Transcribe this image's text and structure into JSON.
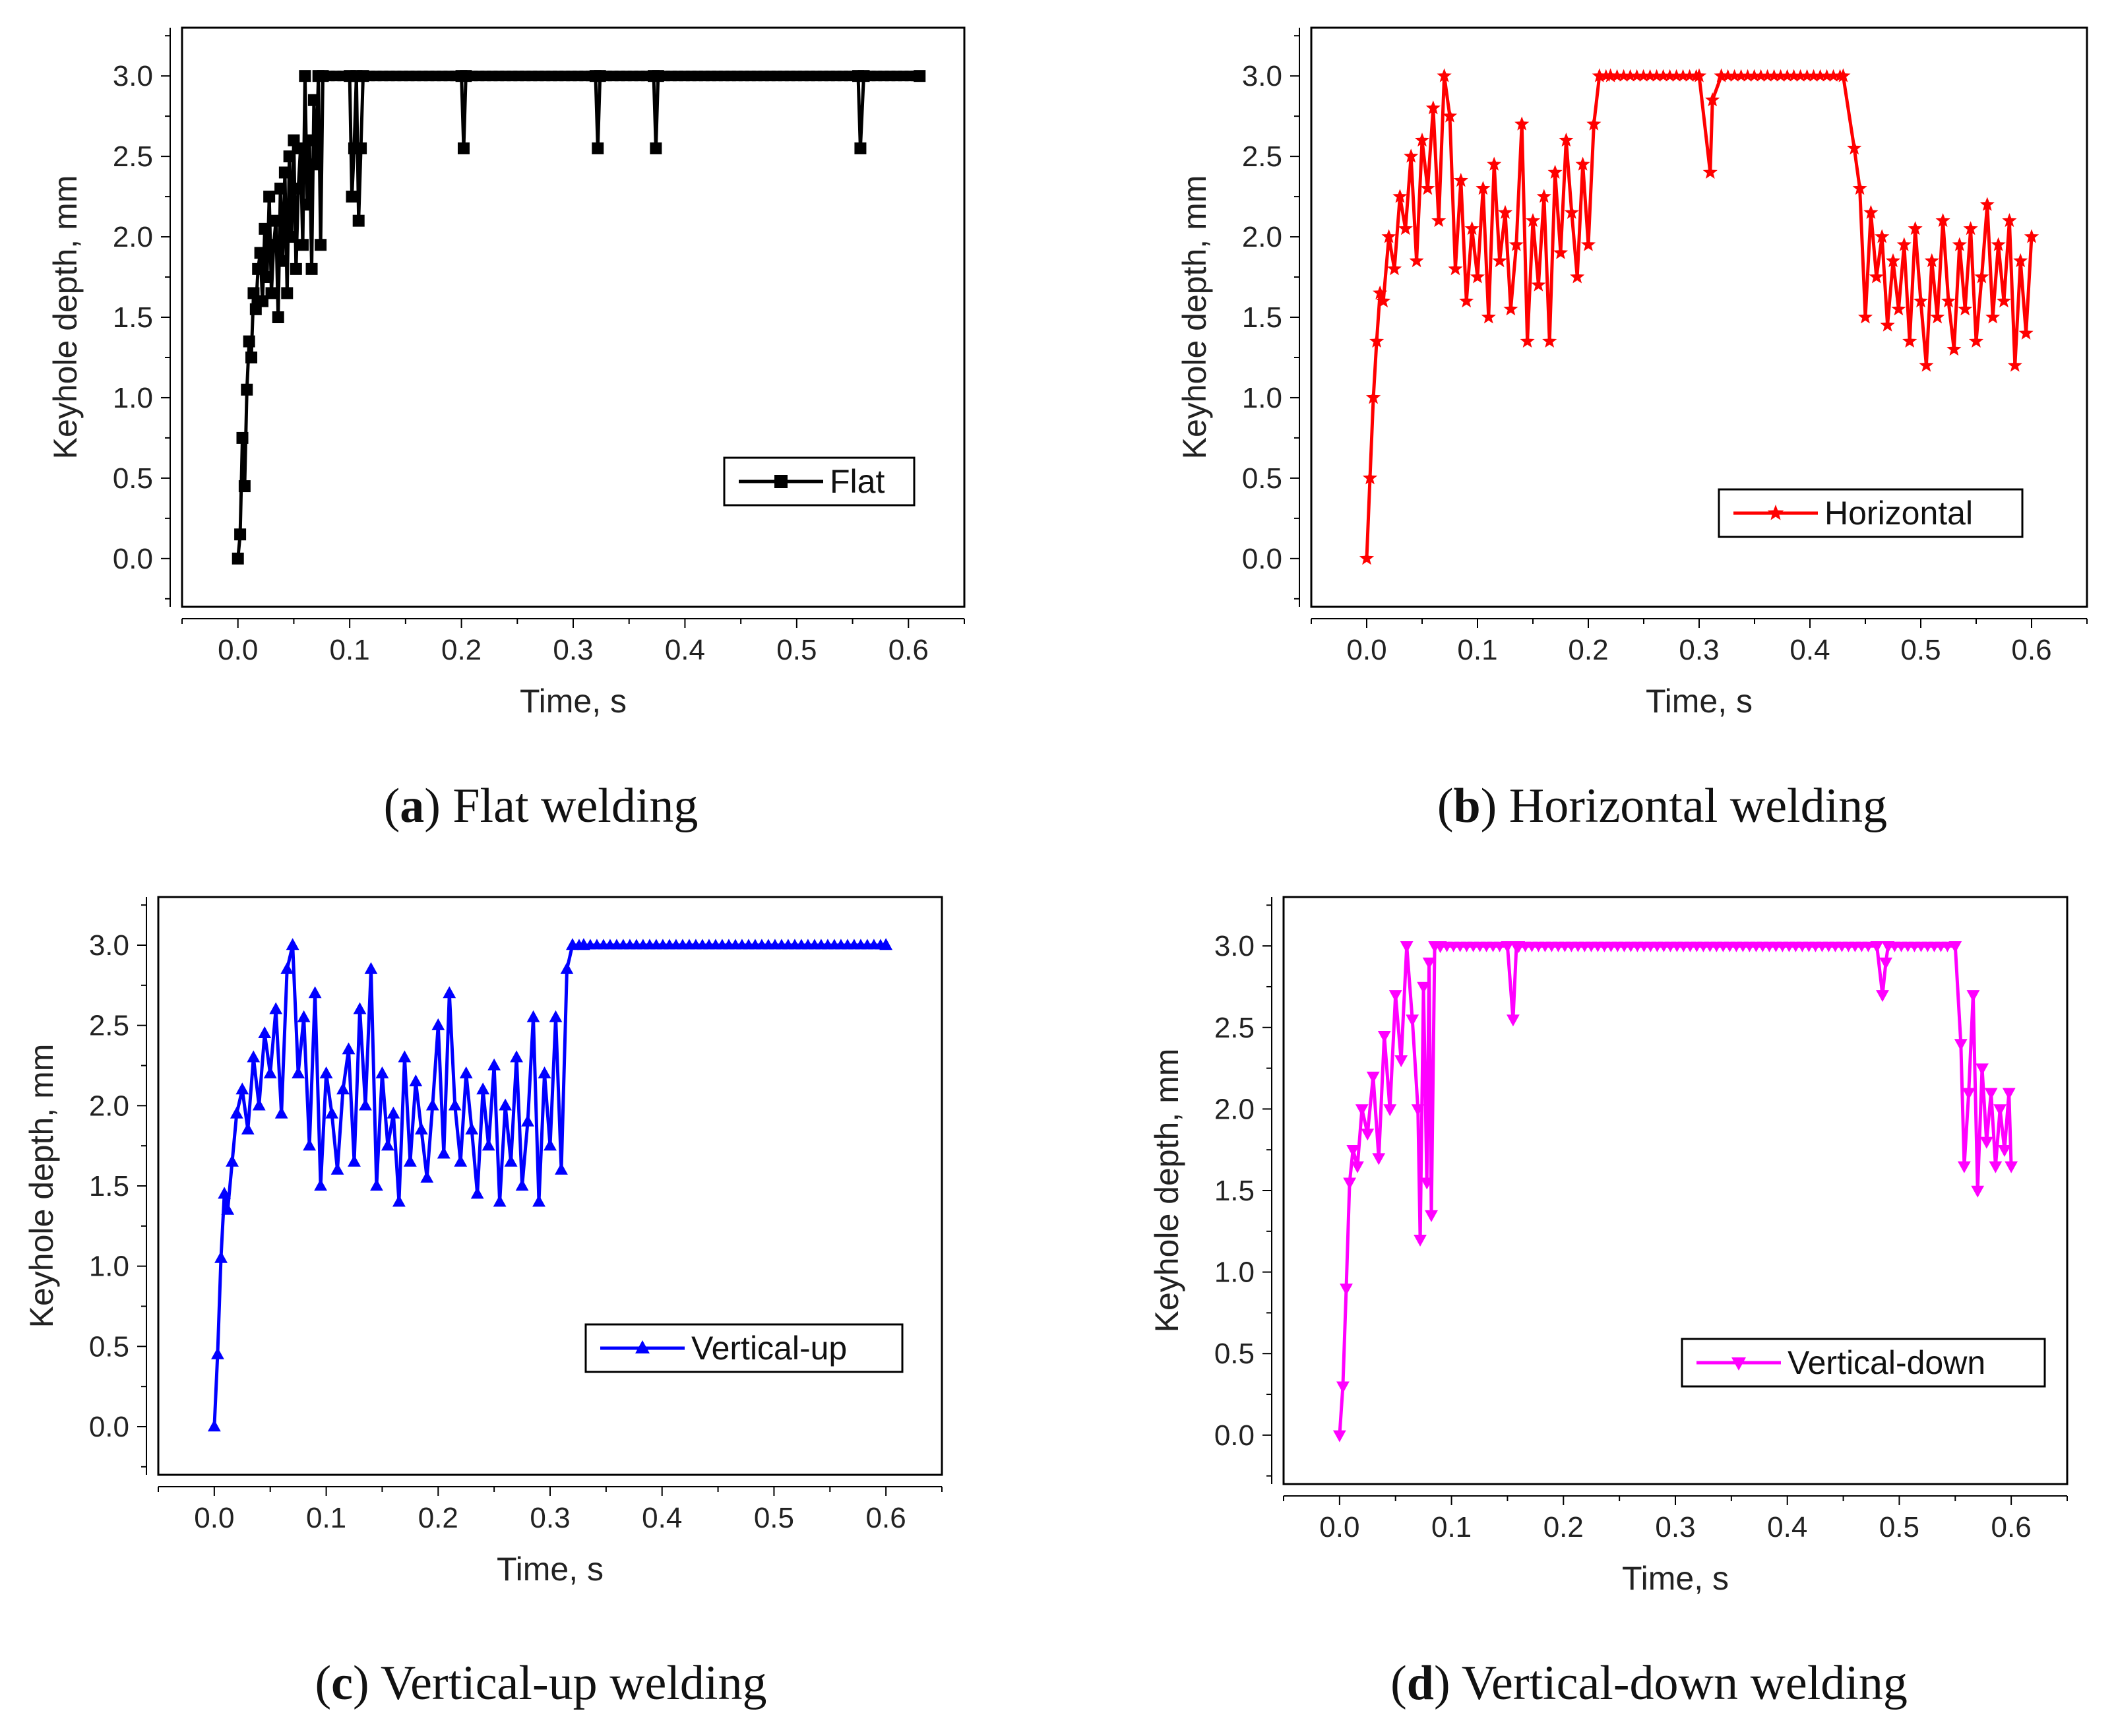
{
  "chart_data": [
    {
      "type": "line",
      "panel_letter": "a",
      "caption_text": "Flat welding",
      "xlabel": "Time, s",
      "ylabel": "Keyhole depth, mm",
      "xlim": [
        -0.05,
        0.65
      ],
      "ylim": [
        -0.3,
        3.3
      ],
      "xticks": [
        "0.0",
        "0.1",
        "0.2",
        "0.3",
        "0.4",
        "0.5",
        "0.6"
      ],
      "yticks": [
        "0.0",
        "0.5",
        "1.0",
        "1.5",
        "2.0",
        "2.5",
        "3.0"
      ],
      "legend_position": "center-right",
      "series": [
        {
          "name": "Flat",
          "color": "#000000",
          "marker": "square",
          "x": [
            0.0,
            0.002,
            0.004,
            0.006,
            0.008,
            0.01,
            0.012,
            0.014,
            0.016,
            0.018,
            0.02,
            0.022,
            0.024,
            0.026,
            0.028,
            0.03,
            0.032,
            0.034,
            0.036,
            0.038,
            0.04,
            0.042,
            0.044,
            0.046,
            0.048,
            0.05,
            0.052,
            0.054,
            0.056,
            0.058,
            0.06,
            0.062,
            0.064,
            0.066,
            0.068,
            0.07,
            0.072,
            0.074,
            0.076,
            0.1,
            0.102,
            0.104,
            0.106,
            0.108,
            0.11,
            0.112,
            0.2,
            0.202,
            0.204,
            0.32,
            0.322,
            0.324,
            0.372,
            0.374,
            0.376,
            0.555,
            0.557,
            0.56,
            0.61
          ],
          "y": [
            0.0,
            0.15,
            0.75,
            0.45,
            1.05,
            1.35,
            1.25,
            1.65,
            1.55,
            1.8,
            1.9,
            1.6,
            2.05,
            1.75,
            2.25,
            1.65,
            1.95,
            2.1,
            1.5,
            2.3,
            1.85,
            2.4,
            1.65,
            2.5,
            2.0,
            2.6,
            1.8,
            2.3,
            2.55,
            1.95,
            3.0,
            2.2,
            2.6,
            1.8,
            2.85,
            2.45,
            3.0,
            1.95,
            3.0,
            3.0,
            2.25,
            2.55,
            3.0,
            2.1,
            2.55,
            3.0,
            3.0,
            2.55,
            3.0,
            3.0,
            2.55,
            3.0,
            3.0,
            2.55,
            3.0,
            3.0,
            2.55,
            3.0,
            3.0
          ]
        }
      ]
    },
    {
      "type": "line",
      "panel_letter": "b",
      "caption_text": "Horizontal welding",
      "xlabel": "Time, s",
      "ylabel": "Keyhole depth, mm",
      "xlim": [
        -0.05,
        0.65
      ],
      "ylim": [
        -0.3,
        3.3
      ],
      "xticks": [
        "0.0",
        "0.1",
        "0.2",
        "0.3",
        "0.4",
        "0.5",
        "0.6"
      ],
      "yticks": [
        "0.0",
        "0.5",
        "1.0",
        "1.5",
        "2.0",
        "2.5",
        "3.0"
      ],
      "legend_position": "center-right",
      "series": [
        {
          "name": "Horizontal",
          "color": "#ff0000",
          "marker": "star",
          "x": [
            0.0,
            0.003,
            0.006,
            0.009,
            0.012,
            0.015,
            0.02,
            0.025,
            0.03,
            0.035,
            0.04,
            0.045,
            0.05,
            0.055,
            0.06,
            0.065,
            0.07,
            0.075,
            0.08,
            0.085,
            0.09,
            0.095,
            0.1,
            0.105,
            0.11,
            0.115,
            0.12,
            0.125,
            0.13,
            0.135,
            0.14,
            0.145,
            0.15,
            0.155,
            0.16,
            0.165,
            0.17,
            0.175,
            0.18,
            0.185,
            0.19,
            0.195,
            0.2,
            0.205,
            0.21,
            0.22,
            0.3,
            0.31,
            0.312,
            0.32,
            0.43,
            0.44,
            0.445,
            0.45,
            0.455,
            0.46,
            0.465,
            0.47,
            0.475,
            0.48,
            0.485,
            0.49,
            0.495,
            0.5,
            0.505,
            0.51,
            0.515,
            0.52,
            0.525,
            0.53,
            0.535,
            0.54,
            0.545,
            0.55,
            0.555,
            0.56,
            0.565,
            0.57,
            0.575,
            0.58,
            0.585,
            0.59,
            0.595,
            0.6
          ],
          "y": [
            0.0,
            0.5,
            1.0,
            1.35,
            1.65,
            1.6,
            2.0,
            1.8,
            2.25,
            2.05,
            2.5,
            1.85,
            2.6,
            2.3,
            2.8,
            2.1,
            3.0,
            2.75,
            1.8,
            2.35,
            1.6,
            2.05,
            1.75,
            2.3,
            1.5,
            2.45,
            1.85,
            2.15,
            1.55,
            1.95,
            2.7,
            1.35,
            2.1,
            1.7,
            2.25,
            1.35,
            2.4,
            1.9,
            2.6,
            2.15,
            1.75,
            2.45,
            1.95,
            2.7,
            3.0,
            3.0,
            3.0,
            2.4,
            2.85,
            3.0,
            3.0,
            2.55,
            2.3,
            1.5,
            2.15,
            1.75,
            2.0,
            1.45,
            1.85,
            1.55,
            1.95,
            1.35,
            2.05,
            1.6,
            1.2,
            1.85,
            1.5,
            2.1,
            1.6,
            1.3,
            1.95,
            1.55,
            2.05,
            1.35,
            1.75,
            2.2,
            1.5,
            1.95,
            1.6,
            2.1,
            1.2,
            1.85,
            1.4,
            2.0
          ]
        }
      ]
    },
    {
      "type": "line",
      "panel_letter": "c",
      "caption_text": "Vertical-up welding",
      "xlabel": "Time, s",
      "ylabel": "Keyhole depth, mm",
      "xlim": [
        -0.05,
        0.65
      ],
      "ylim": [
        -0.3,
        3.3
      ],
      "xticks": [
        "0.0",
        "0.1",
        "0.2",
        "0.3",
        "0.4",
        "0.5",
        "0.6"
      ],
      "yticks": [
        "0.0",
        "0.5",
        "1.0",
        "1.5",
        "2.0",
        "2.5",
        "3.0"
      ],
      "legend_position": "center-right",
      "series": [
        {
          "name": "Vertical-up",
          "color": "#0000ff",
          "marker": "triangle-up",
          "x": [
            0.0,
            0.003,
            0.006,
            0.009,
            0.012,
            0.016,
            0.02,
            0.025,
            0.03,
            0.035,
            0.04,
            0.045,
            0.05,
            0.055,
            0.06,
            0.065,
            0.07,
            0.075,
            0.08,
            0.085,
            0.09,
            0.095,
            0.1,
            0.105,
            0.11,
            0.115,
            0.12,
            0.125,
            0.13,
            0.135,
            0.14,
            0.145,
            0.15,
            0.155,
            0.16,
            0.165,
            0.17,
            0.175,
            0.18,
            0.185,
            0.19,
            0.195,
            0.2,
            0.205,
            0.21,
            0.215,
            0.22,
            0.225,
            0.23,
            0.235,
            0.24,
            0.245,
            0.25,
            0.255,
            0.26,
            0.265,
            0.27,
            0.275,
            0.28,
            0.285,
            0.29,
            0.295,
            0.3,
            0.305,
            0.31,
            0.315,
            0.32,
            0.33,
            0.6
          ],
          "y": [
            0.0,
            0.45,
            1.05,
            1.45,
            1.35,
            1.65,
            1.95,
            2.1,
            1.85,
            2.3,
            2.0,
            2.45,
            2.2,
            2.6,
            1.95,
            2.85,
            3.0,
            2.2,
            2.55,
            1.75,
            2.7,
            1.5,
            2.2,
            1.95,
            1.6,
            2.1,
            2.35,
            1.65,
            2.6,
            2.0,
            2.85,
            1.5,
            2.2,
            1.75,
            1.95,
            1.4,
            2.3,
            1.65,
            2.15,
            1.85,
            1.55,
            2.0,
            2.5,
            1.7,
            2.7,
            2.0,
            1.65,
            2.2,
            1.85,
            1.45,
            2.1,
            1.75,
            2.25,
            1.4,
            2.0,
            1.65,
            2.3,
            1.5,
            1.9,
            2.55,
            1.4,
            2.2,
            1.75,
            2.55,
            1.6,
            2.85,
            3.0,
            3.0,
            3.0
          ]
        }
      ]
    },
    {
      "type": "line",
      "panel_letter": "d",
      "caption_text": "Vertical-down welding",
      "xlabel": "Time, s",
      "ylabel": "Keyhole depth, mm",
      "xlim": [
        -0.05,
        0.65
      ],
      "ylim": [
        -0.3,
        3.3
      ],
      "xticks": [
        "0.0",
        "0.1",
        "0.2",
        "0.3",
        "0.4",
        "0.5",
        "0.6"
      ],
      "yticks": [
        "0.0",
        "0.5",
        "1.0",
        "1.5",
        "2.0",
        "2.5",
        "3.0"
      ],
      "legend_position": "center-right",
      "series": [
        {
          "name": "Vertical-down",
          "color": "#ff00ff",
          "marker": "triangle-down",
          "x": [
            0.0,
            0.003,
            0.006,
            0.009,
            0.012,
            0.016,
            0.02,
            0.025,
            0.03,
            0.035,
            0.04,
            0.045,
            0.05,
            0.055,
            0.06,
            0.065,
            0.07,
            0.072,
            0.075,
            0.078,
            0.08,
            0.082,
            0.085,
            0.09,
            0.15,
            0.155,
            0.158,
            0.16,
            0.48,
            0.485,
            0.488,
            0.49,
            0.55,
            0.555,
            0.558,
            0.562,
            0.566,
            0.57,
            0.574,
            0.578,
            0.582,
            0.586,
            0.59,
            0.594,
            0.598,
            0.6
          ],
          "y": [
            0.0,
            0.3,
            0.9,
            1.55,
            1.75,
            1.65,
            2.0,
            1.85,
            2.2,
            1.7,
            2.45,
            2.0,
            2.7,
            2.3,
            3.0,
            2.55,
            2.0,
            1.2,
            2.75,
            1.55,
            2.9,
            1.35,
            3.0,
            3.0,
            3.0,
            2.55,
            3.0,
            3.0,
            3.0,
            2.7,
            2.9,
            3.0,
            3.0,
            2.4,
            1.65,
            2.1,
            2.7,
            1.5,
            2.25,
            1.8,
            2.1,
            1.65,
            2.0,
            1.75,
            2.1,
            1.65
          ]
        }
      ]
    }
  ]
}
